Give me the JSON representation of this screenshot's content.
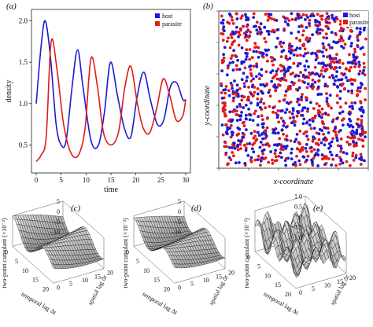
{
  "panels": {
    "a": "(a)",
    "b": "(b)",
    "c": "(c)",
    "d": "(d)",
    "e": "(e)"
  },
  "colors": {
    "host": "#1a1ad6",
    "parasite": "#e01a1a",
    "surface": "#111111"
  },
  "chart_data": [
    {
      "type": "line",
      "panel": "a",
      "xlabel": "time",
      "ylabel": "density",
      "xlim": [
        0,
        30
      ],
      "ylim": [
        0.2,
        2.1
      ],
      "xticks": [
        "0",
        "5",
        "10",
        "15",
        "20",
        "25",
        "30"
      ],
      "yticks": [
        "0.5",
        "1.0",
        "1.5",
        "2.0"
      ],
      "legend": {
        "placement": "top-right",
        "entries": [
          "host",
          "parasite"
        ]
      },
      "series": [
        {
          "name": "host",
          "x": [
            0,
            1,
            1.8,
            2.8,
            4,
            5,
            6,
            7.2,
            8.3,
            9.4,
            11,
            12.5,
            13.7,
            14.9,
            16.3,
            17.7,
            19,
            20.3,
            21.6,
            22.9,
            24.3,
            25.6,
            26.9,
            28.2,
            29.4,
            30
          ],
          "y": [
            1.0,
            1.7,
            2.0,
            1.6,
            0.75,
            0.5,
            0.55,
            1.2,
            1.65,
            1.2,
            0.55,
            0.5,
            0.9,
            1.5,
            1.1,
            0.7,
            0.6,
            1.1,
            1.38,
            1.05,
            0.75,
            0.8,
            1.2,
            1.25,
            1.05,
            1.05
          ]
        },
        {
          "name": "parasite",
          "x": [
            0,
            1,
            2,
            3,
            4.2,
            5.5,
            7,
            8.5,
            9.8,
            11,
            12.3,
            13.5,
            15,
            16.5,
            17.8,
            19,
            20.3,
            21.5,
            22.8,
            24.2,
            25.5,
            26.8,
            28.1,
            29.4,
            30
          ],
          "y": [
            0.3,
            0.38,
            0.6,
            1.75,
            1.4,
            0.75,
            0.4,
            0.38,
            0.7,
            1.55,
            1.2,
            0.65,
            0.5,
            0.65,
            1.2,
            1.45,
            1.0,
            0.7,
            0.65,
            0.95,
            1.3,
            1.1,
            0.8,
            0.85,
            1.05
          ]
        }
      ]
    },
    {
      "type": "scatter",
      "panel": "b",
      "xlabel": "x-coordinate",
      "ylabel": "y-coordinate",
      "xlim": [
        0,
        1
      ],
      "ylim": [
        0,
        1
      ],
      "legend": {
        "placement": "top-right",
        "entries": [
          "host",
          "parasite"
        ]
      },
      "series": [
        {
          "name": "host",
          "count": 600
        },
        {
          "name": "parasite",
          "count": 600
        }
      ]
    },
    {
      "type": "surface",
      "panel": "c",
      "xlabel": "temporal lag Δt",
      "ylabel": "spatial lag Δr",
      "zlabel": "two-point cumulant (×10⁻²)",
      "xticks": [
        "0",
        "5",
        "10",
        "15",
        "20"
      ],
      "yticks": [
        "0",
        "5",
        "10",
        "15",
        "20"
      ],
      "zticks": [
        "5",
        "0",
        "−5",
        "−10"
      ],
      "zlim": [
        -10,
        5
      ]
    },
    {
      "type": "surface",
      "panel": "d",
      "xlabel": "temporal lag Δt",
      "ylabel": "spatial lag Δr",
      "zlabel": "two-point cumulant (×10⁻²)",
      "xticks": [
        "0",
        "5",
        "10",
        "15",
        "20"
      ],
      "yticks": [
        "0",
        "5",
        "10",
        "15",
        "20"
      ],
      "zticks": [
        "5",
        "0",
        "−5",
        "−10"
      ],
      "zlim": [
        -10,
        5
      ]
    },
    {
      "type": "surface",
      "panel": "e",
      "xlabel": "temporal lag Δt",
      "ylabel": "spatial lag Δr",
      "zlabel": "two-point cumulant (×10⁻²)",
      "xticks": [
        "0",
        "5",
        "10",
        "15",
        "20"
      ],
      "yticks": [
        "0",
        "5",
        "10",
        "15",
        "20"
      ],
      "zticks": [
        "1.0",
        "0.5",
        "0",
        "−0.5",
        "−1.0"
      ],
      "zlim": [
        -1,
        1
      ]
    }
  ]
}
